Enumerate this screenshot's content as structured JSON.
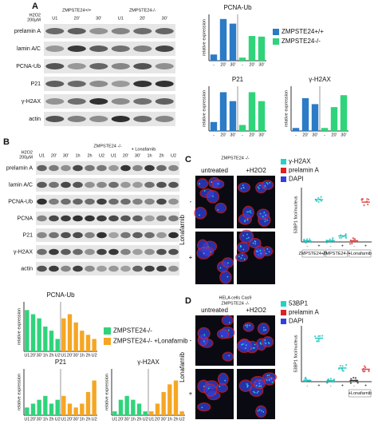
{
  "panel_a": {
    "label": "A",
    "blot": {
      "groups": [
        "ZMPSTE24+/+",
        "ZMPSTE24-/-"
      ],
      "treatment": [
        "H2O2",
        "200μM"
      ],
      "lanes": [
        "U1",
        "20'",
        "30'",
        "U1",
        "20'",
        "30'"
      ],
      "rows": [
        "prelamin A",
        "lamin A/C",
        "PCNA-Ub",
        "P21",
        "γ-H2AX",
        "actin"
      ]
    },
    "legend": [
      {
        "name": "ZMPSTE24+/+",
        "color": "#2b7bc6"
      },
      {
        "name": "ZMPSTE24-/-",
        "color": "#2fd47a"
      }
    ],
    "charts": [
      {
        "type": "bar",
        "title": "PCNA-Ub",
        "y_label": "relative expression",
        "categories": [
          "-",
          "20'",
          "30'"
        ],
        "ylim": [
          0,
          1.5
        ],
        "series": [
          {
            "color": "#2b7bc6",
            "values": [
              0.2,
              1.35,
              1.2
            ]
          },
          {
            "color": "#2fd47a",
            "values": [
              0.1,
              0.8,
              0.78
            ]
          }
        ]
      },
      {
        "type": "bar",
        "title": "P21",
        "y_label": "relative expression",
        "categories": [
          "-",
          "20'",
          "30'"
        ],
        "ylim": [
          0,
          1.5
        ],
        "series": [
          {
            "color": "#2b7bc6",
            "values": [
              0.3,
              1.3,
              1.0
            ]
          },
          {
            "color": "#2fd47a",
            "values": [
              0.2,
              1.3,
              1.0
            ]
          }
        ]
      },
      {
        "type": "bar",
        "title": "γ-H2AX",
        "y_label": "relative expression",
        "categories": [
          "-",
          "20'",
          "30'"
        ],
        "ylim": [
          0,
          1.5
        ],
        "series": [
          {
            "color": "#2b7bc6",
            "values": [
              0.1,
              1.1,
              0.9
            ]
          },
          {
            "color": "#2fd47a",
            "values": [
              0.1,
              0.8,
              1.2
            ]
          }
        ]
      }
    ]
  },
  "panel_b": {
    "label": "B",
    "blot": {
      "groups": [
        "ZMPSTE24 -/-",
        "+ Lonafarnib"
      ],
      "treatment": [
        "H2O2",
        "200μM"
      ],
      "lanes": [
        "U1",
        "20'",
        "30'",
        "1h",
        "2h",
        "U2",
        "U1",
        "20'",
        "30'",
        "1h",
        "2h",
        "U2"
      ],
      "rows": [
        "prelamin A",
        "lamin A/C",
        "PCNA-Ub",
        "PCNA",
        "P21",
        "γ-H2AX",
        "actin"
      ]
    },
    "legend": [
      {
        "name": "ZMPSTE24-/-",
        "color": "#2fd47a"
      },
      {
        "name": "ZMPSTE24-/- +Lonafarnib",
        "color": "#f5a623"
      }
    ],
    "charts": [
      {
        "type": "bar",
        "title": "PCNA-Ub",
        "y_label": "relative expression",
        "categories": [
          "U1",
          "20'",
          "30'",
          "1h",
          "2h",
          "U2"
        ],
        "ylim": [
          0,
          1.2
        ],
        "series": [
          {
            "color": "#2fd47a",
            "values": [
              1.0,
              0.9,
              0.8,
              0.6,
              0.5,
              0.3
            ]
          },
          {
            "color": "#f5a623",
            "values": [
              0.8,
              0.9,
              0.7,
              0.5,
              0.4,
              0.3
            ]
          }
        ]
      },
      {
        "type": "bar",
        "title": "P21",
        "y_label": "relative expression",
        "categories": [
          "U1",
          "20'",
          "30'",
          "1h",
          "2h",
          "U2"
        ],
        "ylim": [
          0,
          1.2
        ],
        "series": [
          {
            "color": "#2fd47a",
            "values": [
              0.2,
              0.3,
              0.4,
              0.5,
              0.3,
              0.4
            ]
          },
          {
            "color": "#f5a623",
            "values": [
              0.5,
              0.3,
              0.2,
              0.3,
              0.6,
              0.9
            ]
          }
        ]
      },
      {
        "type": "bar",
        "title": "γ-H2AX",
        "y_label": "relative expression",
        "categories": [
          "U1",
          "20'",
          "30'",
          "1h",
          "2h",
          "U2"
        ],
        "ylim": [
          0,
          1.2
        ],
        "series": [
          {
            "color": "#2fd47a",
            "values": [
              0.1,
              0.4,
              0.5,
              0.4,
              0.3,
              0.1
            ]
          },
          {
            "color": "#f5a623",
            "values": [
              0.1,
              0.3,
              0.6,
              0.8,
              0.9,
              0.1
            ]
          }
        ]
      }
    ]
  },
  "panel_c": {
    "label": "C",
    "title": [
      "ZMPSTE24 -/-"
    ],
    "columns": [
      "untreated",
      "+H2O2"
    ],
    "row_title": "Lonafarnib",
    "rows": [
      "-",
      "+"
    ],
    "legend": [
      {
        "name": "γ-H2AX",
        "color": "#22d3c5"
      },
      {
        "name": "prelamin A",
        "color": "#e02020"
      },
      {
        "name": "DAPI",
        "color": "#3040e0"
      }
    ],
    "chart": {
      "type": "dot",
      "y_label": "53BP1 foci/nucleus",
      "categories": [
        "-",
        "+",
        "-",
        "+",
        "-",
        "+"
      ],
      "ylim": [
        0,
        45
      ],
      "values": [
        1,
        35,
        1,
        5,
        1,
        33
      ],
      "colors": [
        "#22c5bd",
        "#22c5bd",
        "#22c5bd",
        "#22c5bd",
        "#e04040",
        "#e04040"
      ],
      "groups": [
        "ZMPSTE24+/+",
        "ZMPSTE24-/-",
        "+Lonafarnib"
      ]
    }
  },
  "panel_d": {
    "label": "D",
    "title": [
      "HELA cells Cas9",
      "ZMPSTE24 -/-"
    ],
    "columns": [
      "untreated",
      "+H2O2"
    ],
    "row_title": "Lonafarnib",
    "rows": [
      "-",
      "+"
    ],
    "legend": [
      {
        "name": "53BP1",
        "color": "#22d3c5"
      },
      {
        "name": "prelamin A",
        "color": "#e02020"
      },
      {
        "name": "DAPI",
        "color": "#3040e0"
      }
    ],
    "chart": {
      "type": "dot",
      "y_label": "53BP1 foci/nucleus",
      "categories": [
        "-",
        "+",
        "-",
        "+",
        "-",
        "+"
      ],
      "ylim": [
        0,
        45
      ],
      "values": [
        1,
        35,
        1,
        11,
        1,
        10
      ],
      "colors": [
        "#22c5bd",
        "#22c5bd",
        "#22c5bd",
        "#22c5bd",
        "#333333",
        "#e04040"
      ],
      "groups": [
        "+Lonafarnib"
      ]
    }
  }
}
